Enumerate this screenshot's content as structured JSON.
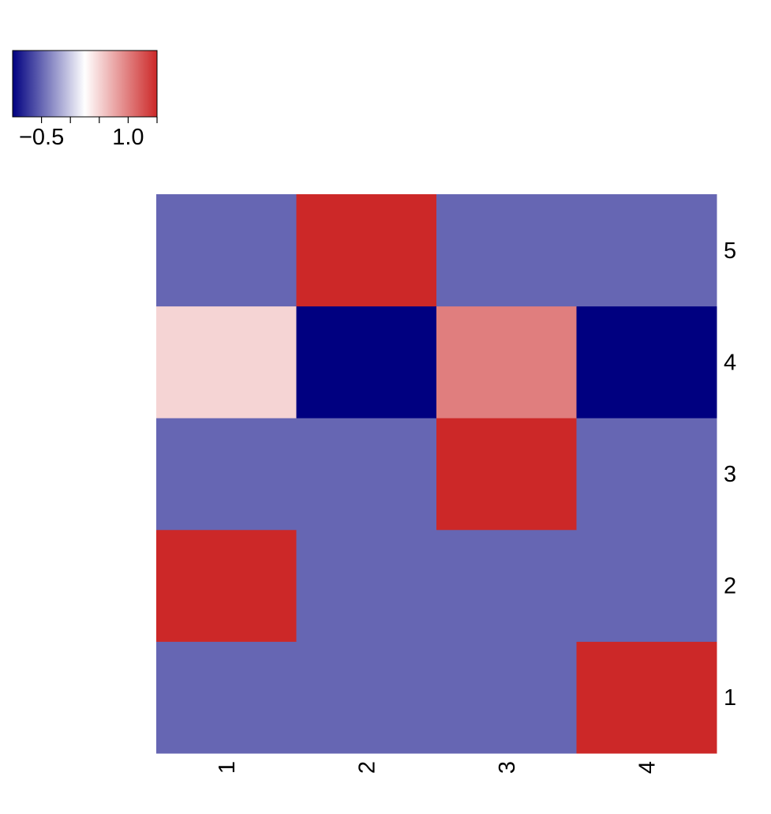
{
  "chart_data": {
    "type": "heatmap",
    "title": "",
    "xlabel": "",
    "ylabel": "",
    "x_categories": [
      "1",
      "2",
      "3",
      "4"
    ],
    "y_categories": [
      "1",
      "2",
      "3",
      "4",
      "5"
    ],
    "values": [
      [
        -0.5,
        -0.5,
        -0.5,
        1.5
      ],
      [
        1.5,
        -0.5,
        -0.5,
        -0.5
      ],
      [
        -0.5,
        -0.5,
        1.5,
        -0.5
      ],
      [
        0.5,
        -1.0,
        1.0,
        -1.0
      ],
      [
        -0.5,
        1.5,
        -0.5,
        -0.5
      ]
    ],
    "color_scale": {
      "min": -1.0,
      "max": 1.5,
      "stops": [
        {
          "value": -1.0,
          "color": "#000080"
        },
        {
          "value": 0.25,
          "color": "#ffffff"
        },
        {
          "value": 1.5,
          "color": "#cc2828"
        }
      ]
    },
    "colorbar": {
      "placement": "top-left",
      "tick_values": [
        -0.5,
        0.0,
        0.5,
        1.0,
        1.5
      ],
      "tick_labels": [
        "−0.5",
        "",
        "",
        "1.0",
        ""
      ]
    },
    "legend": "top-left"
  }
}
